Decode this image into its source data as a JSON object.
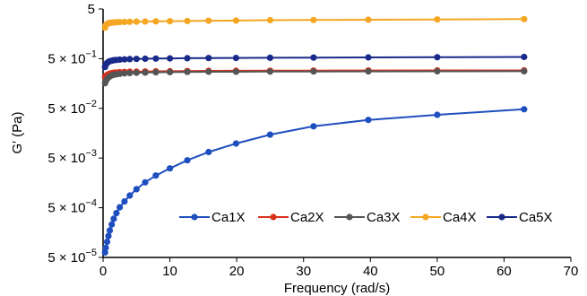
{
  "chart_data": {
    "type": "line",
    "title": "",
    "xlabel": "Frequency (rad/s)",
    "ylabel": "G′ (Pa)",
    "xlim": [
      0,
      70
    ],
    "ylim_log10": [
      -4.301,
      0.699
    ],
    "scale_y": "log",
    "x_ticks": [
      0,
      10,
      20,
      30,
      40,
      50,
      60,
      70
    ],
    "y_ticks": [
      {
        "label": "5",
        "value": 5
      },
      {
        "label": "5 × 10",
        "exp": "−1",
        "value": 0.5
      },
      {
        "label": "5 × 10",
        "exp": "−2",
        "value": 0.05
      },
      {
        "label": "5 × 10",
        "exp": "−3",
        "value": 0.005
      },
      {
        "label": "5 × 10",
        "exp": "−4",
        "value": 0.0005
      },
      {
        "label": "5 × 10",
        "exp": "−5",
        "value": 5e-05
      }
    ],
    "legend_position": "bottom-right",
    "grid": false,
    "series": [
      {
        "name": "Ca1X",
        "color": "#1f4fbf",
        "x": [
          0.3,
          0.4,
          0.6,
          0.8,
          1.0,
          1.3,
          1.6,
          2.0,
          2.5,
          3.2,
          4.0,
          5.0,
          6.3,
          7.9,
          10,
          12.6,
          15.8,
          19.9,
          25,
          31.5,
          39.7,
          50,
          63
        ],
        "y": [
          6.3e-05,
          7.8e-05,
          0.000103,
          0.000135,
          0.000175,
          0.00023,
          0.0003,
          0.00039,
          0.00051,
          0.00067,
          0.00088,
          0.00118,
          0.00162,
          0.00222,
          0.0031,
          0.0045,
          0.0066,
          0.0098,
          0.0148,
          0.0218,
          0.0292,
          0.037,
          0.048
        ]
      },
      {
        "name": "Ca2X",
        "color": "#d9301c",
        "x": [
          0.3,
          0.4,
          0.6,
          0.8,
          1.0,
          1.3,
          1.6,
          2.0,
          2.5,
          3.2,
          4.0,
          5.0,
          6.3,
          7.9,
          10,
          12.6,
          15.8,
          19.9,
          25,
          31.5,
          39.7,
          50,
          63
        ],
        "y": [
          0.21,
          0.225,
          0.235,
          0.243,
          0.25,
          0.255,
          0.26,
          0.264,
          0.267,
          0.27,
          0.272,
          0.274,
          0.276,
          0.278,
          0.28,
          0.282,
          0.284,
          0.285,
          0.287,
          0.288,
          0.289,
          0.29,
          0.29
        ]
      },
      {
        "name": "Ca3X",
        "color": "#555555",
        "x": [
          0.3,
          0.4,
          0.6,
          0.8,
          1.0,
          1.3,
          1.6,
          2.0,
          2.5,
          3.2,
          4.0,
          5.0,
          6.3,
          7.9,
          10,
          12.6,
          15.8,
          19.9,
          25,
          31.5,
          39.7,
          50,
          63
        ],
        "y": [
          0.16,
          0.178,
          0.195,
          0.21,
          0.22,
          0.23,
          0.237,
          0.243,
          0.248,
          0.253,
          0.257,
          0.26,
          0.263,
          0.266,
          0.268,
          0.27,
          0.272,
          0.273,
          0.275,
          0.276,
          0.277,
          0.278,
          0.279
        ]
      },
      {
        "name": "Ca4X",
        "color": "#f5a623",
        "x": [
          0.3,
          0.4,
          0.6,
          0.8,
          1.0,
          1.3,
          1.6,
          2.0,
          2.5,
          3.2,
          4.0,
          5.0,
          6.3,
          7.9,
          10,
          12.6,
          15.8,
          19.9,
          25,
          31.5,
          39.7,
          50,
          63
        ],
        "y": [
          2.1,
          2.35,
          2.5,
          2.58,
          2.62,
          2.66,
          2.68,
          2.7,
          2.72,
          2.74,
          2.76,
          2.78,
          2.8,
          2.82,
          2.84,
          2.87,
          2.9,
          2.93,
          2.97,
          3.0,
          3.04,
          3.08,
          3.12
        ]
      },
      {
        "name": "Ca5X",
        "color": "#1a2a8a",
        "x": [
          0.3,
          0.4,
          0.6,
          0.8,
          1.0,
          1.3,
          1.6,
          2.0,
          2.5,
          3.2,
          4.0,
          5.0,
          6.3,
          7.9,
          10,
          12.6,
          15.8,
          19.9,
          25,
          31.5,
          39.7,
          50,
          63
        ],
        "y": [
          0.34,
          0.38,
          0.41,
          0.43,
          0.445,
          0.455,
          0.465,
          0.472,
          0.478,
          0.484,
          0.49,
          0.494,
          0.498,
          0.502,
          0.506,
          0.51,
          0.514,
          0.518,
          0.522,
          0.526,
          0.53,
          0.535,
          0.54
        ]
      }
    ]
  }
}
